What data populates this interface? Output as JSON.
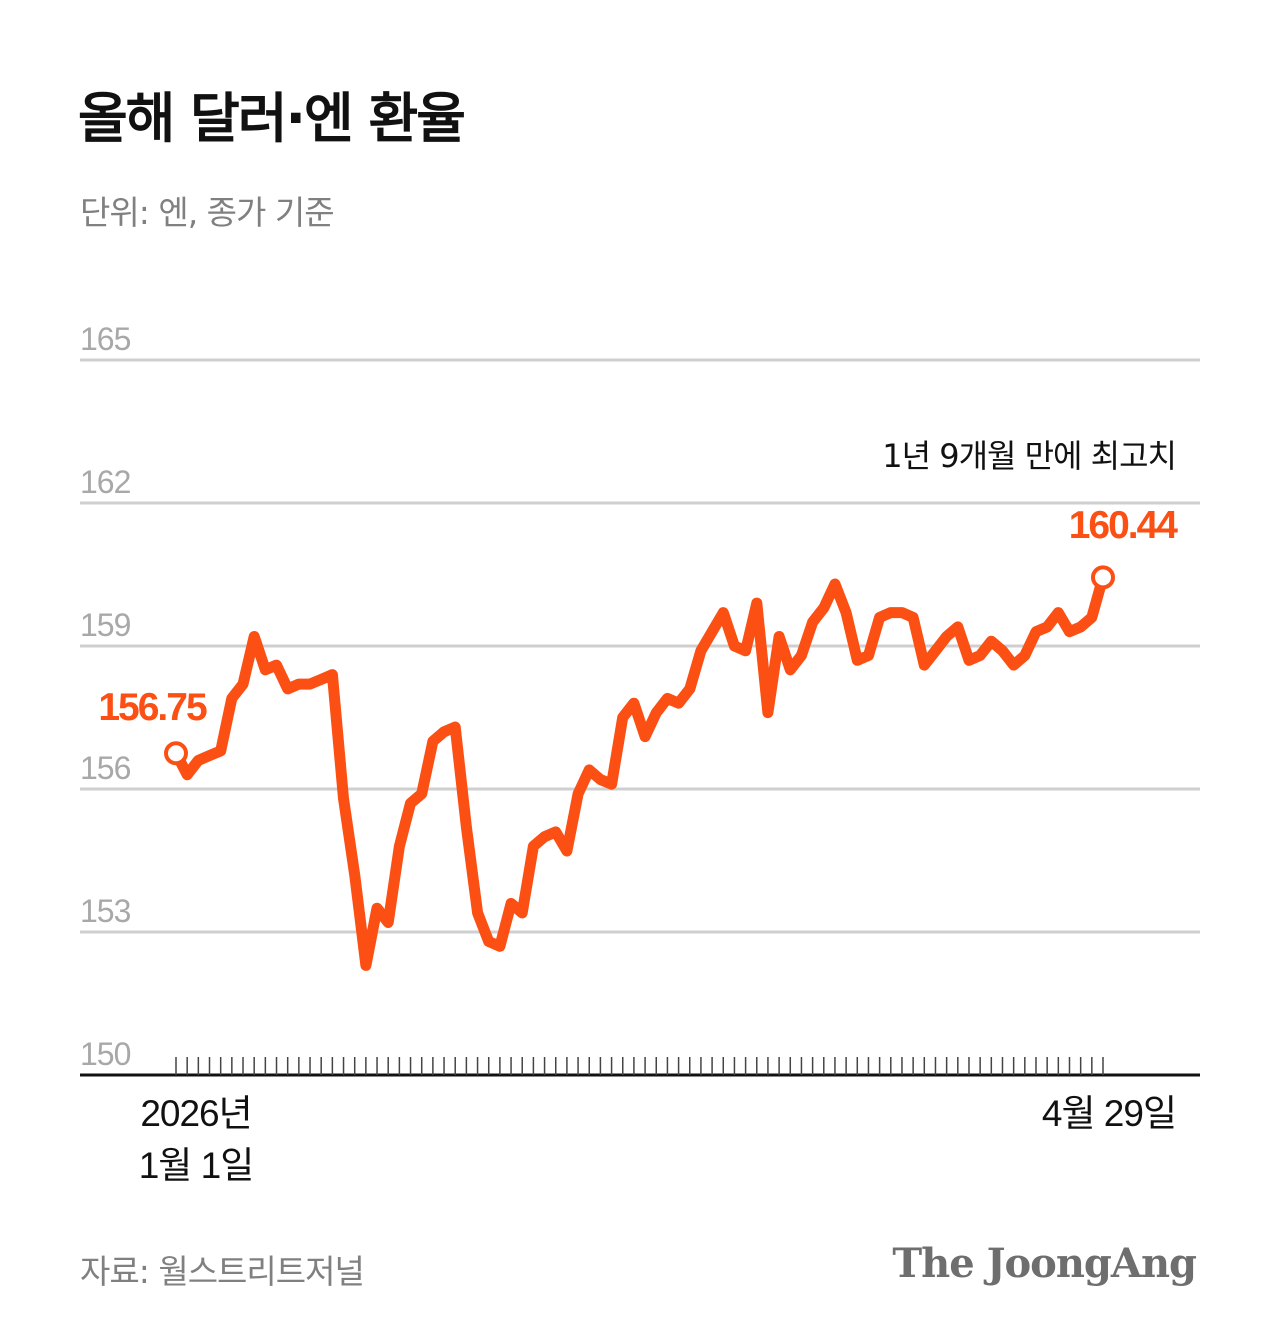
{
  "title": "올해 달러·엔 환율",
  "subtitle": "단위: 엔, 종가 기준",
  "source": "자료: 월스트리트저널",
  "logo": "The JoongAng",
  "colors": {
    "line": "#fb4f14",
    "grid": "#cfcfcf",
    "axis": "#111111"
  },
  "chart_data": {
    "type": "line",
    "title": "올해 달러·엔 환율",
    "ylabel": "",
    "ylim": [
      150,
      165
    ],
    "yticks": [
      150,
      153,
      156,
      159,
      162,
      165
    ],
    "grid": true,
    "x_start_label": [
      "2026년",
      "1월 1일"
    ],
    "x_end_label": "4월 29일",
    "annotations": {
      "start_value": "156.75",
      "end_value": "160.44",
      "end_note": "1년 9개월 만에 최고치"
    },
    "series": [
      {
        "values": [
          156.75,
          156.3,
          156.6,
          156.7,
          156.8,
          157.9,
          158.2,
          159.2,
          158.5,
          158.6,
          158.1,
          158.2,
          158.2,
          158.3,
          158.4,
          155.8,
          154.2,
          152.3,
          153.5,
          153.2,
          154.8,
          155.7,
          155.9,
          157.0,
          157.2,
          157.3,
          155.2,
          153.4,
          152.8,
          152.7,
          153.6,
          153.4,
          154.8,
          155.0,
          155.1,
          154.7,
          155.9,
          156.4,
          156.2,
          156.1,
          157.5,
          157.8,
          157.1,
          157.6,
          157.9,
          157.8,
          158.1,
          158.9,
          159.3,
          159.7,
          159.0,
          158.9,
          159.9,
          157.6,
          159.2,
          158.5,
          158.8,
          159.5,
          159.8,
          160.3,
          159.7,
          158.7,
          158.8,
          159.6,
          159.7,
          159.7,
          159.6,
          158.6,
          158.9,
          159.2,
          159.4,
          158.7,
          158.8,
          159.1,
          158.9,
          158.6,
          158.8,
          159.3,
          159.4,
          159.7,
          159.3,
          159.4,
          159.6,
          160.44
        ]
      }
    ]
  }
}
